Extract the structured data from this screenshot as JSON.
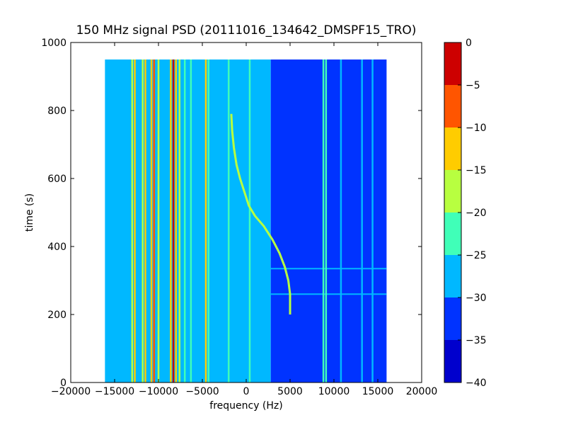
{
  "chart_data": {
    "type": "heatmap",
    "title": "150 MHz signal PSD (20111016_134642_DMSPF15_TRO)",
    "xlabel": "frequency (Hz)",
    "ylabel": "time (s)",
    "xlim": [
      -20000,
      20000
    ],
    "ylim": [
      0,
      1000
    ],
    "xticks": [
      -20000,
      -15000,
      -10000,
      -5000,
      0,
      5000,
      10000,
      15000,
      20000
    ],
    "xtick_labels": [
      "−20000",
      "−15000",
      "−10000",
      "−5000",
      "0",
      "5000",
      "10000",
      "15000",
      "20000"
    ],
    "yticks": [
      0,
      200,
      400,
      600,
      800,
      1000
    ],
    "ytick_labels": [
      "0",
      "200",
      "400",
      "600",
      "800",
      "1000"
    ],
    "data_extent": {
      "x": [
        -16000,
        16000
      ],
      "y": [
        0,
        950
      ]
    },
    "colorbar": {
      "levels": [
        -40,
        -35,
        -30,
        -25,
        -20,
        -15,
        -10,
        -5,
        0
      ],
      "tick_labels": [
        "−40",
        "−35",
        "−30",
        "−25",
        "−20",
        "−15",
        "−10",
        "−5",
        "0"
      ],
      "colors": [
        "#0000cd",
        "#0033ff",
        "#00b8ff",
        "#40ffb8",
        "#b8ff40",
        "#ffcc00",
        "#ff5500",
        "#cd0000"
      ]
    },
    "background_levels": {
      "left_region_db": -27.5,
      "right_region_db": -32.5,
      "boundary_hz": 2800
    },
    "vertical_lines": [
      {
        "f": -16000,
        "db": -27.5
      },
      {
        "f": -13000,
        "db": -17.5
      },
      {
        "f": -12700,
        "db": -12.5
      },
      {
        "f": -11800,
        "db": -17.5
      },
      {
        "f": -11500,
        "db": -12.5
      },
      {
        "f": -10800,
        "db": -12.5
      },
      {
        "f": -10500,
        "db": -7.5
      },
      {
        "f": -10000,
        "db": -17.5
      },
      {
        "f": -8600,
        "db": -12.5
      },
      {
        "f": -8300,
        "db": -2.5
      },
      {
        "f": -8000,
        "db": -12.5
      },
      {
        "f": -7600,
        "db": -17.5
      },
      {
        "f": -7000,
        "db": -22.5
      },
      {
        "f": -6300,
        "db": -22.5
      },
      {
        "f": -4600,
        "db": -12.5
      },
      {
        "f": -4300,
        "db": -22.5
      },
      {
        "f": -2000,
        "db": -22.5
      },
      {
        "f": 400,
        "db": -22.5
      },
      {
        "f": 8800,
        "db": -22.5
      },
      {
        "f": 9100,
        "db": -22.5
      },
      {
        "f": 10800,
        "db": -27.5
      },
      {
        "f": 13200,
        "db": -27.5
      },
      {
        "f": 14400,
        "db": -27.5
      }
    ],
    "horizontal_lines": [
      {
        "t": 335,
        "db": -27.5
      },
      {
        "t": 260,
        "db": -27.5
      }
    ],
    "doppler_trace": {
      "db": -17.5,
      "points": [
        [
          -1700,
          790
        ],
        [
          -1600,
          740
        ],
        [
          -1400,
          690
        ],
        [
          -1100,
          640
        ],
        [
          -700,
          600
        ],
        [
          -200,
          560
        ],
        [
          300,
          520
        ],
        [
          1000,
          490
        ],
        [
          2000,
          460
        ],
        [
          3000,
          420
        ],
        [
          3800,
          380
        ],
        [
          4400,
          340
        ],
        [
          4800,
          300
        ],
        [
          5000,
          260
        ],
        [
          5000,
          220
        ],
        [
          5000,
          200
        ]
      ]
    }
  }
}
